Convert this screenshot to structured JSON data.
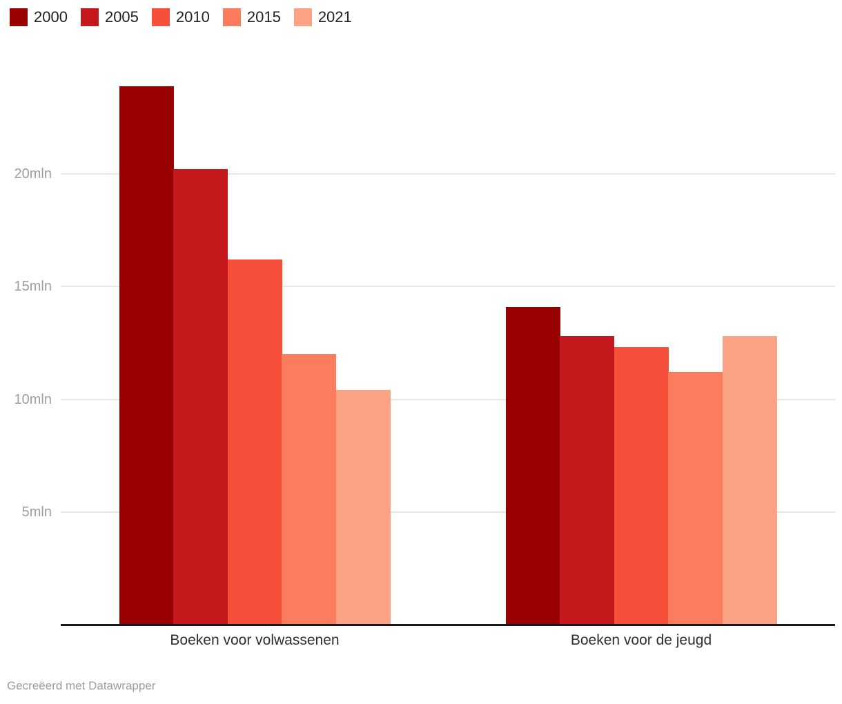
{
  "footer": {
    "credit": "Gecreëerd met Datawrapper"
  },
  "chart_data": {
    "type": "bar",
    "title": "",
    "categories": [
      "Boeken voor volwassenen",
      "Boeken voor de jeugd"
    ],
    "series": [
      {
        "name": "2000",
        "color": "#990000",
        "values": [
          23.9,
          14.1
        ]
      },
      {
        "name": "2005",
        "color": "#c5181d",
        "values": [
          20.2,
          12.8
        ]
      },
      {
        "name": "2010",
        "color": "#f6503c",
        "values": [
          16.2,
          12.3
        ]
      },
      {
        "name": "2015",
        "color": "#fc7d5e",
        "values": [
          12.0,
          11.2
        ]
      },
      {
        "name": "2021",
        "color": "#fca386",
        "values": [
          10.4,
          12.8
        ]
      }
    ],
    "y_axis": {
      "unit": "mln",
      "ticks": [
        {
          "value": 5,
          "label": "5mln"
        },
        {
          "value": 10,
          "label": "10mln"
        },
        {
          "value": 15,
          "label": "15mln"
        },
        {
          "value": 20,
          "label": "20mln"
        }
      ],
      "ylim": [
        0,
        24.4
      ]
    },
    "grid": "horizontal",
    "legend_position": "top-left"
  }
}
